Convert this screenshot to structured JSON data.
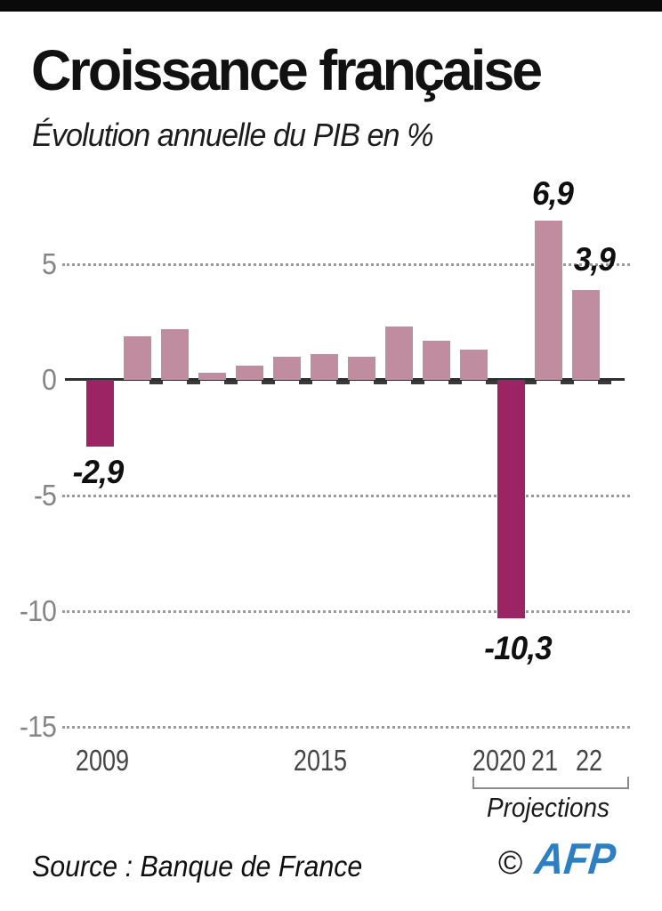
{
  "page": {
    "background": "#ffffff",
    "top_bar_color": "#0a0a0a"
  },
  "header": {
    "title": "Croissance française",
    "subtitle": "Évolution annuelle du PIB en %"
  },
  "chart_data": {
    "type": "bar",
    "title": "Croissance française",
    "subtitle": "Évolution annuelle du PIB en %",
    "unit": "%",
    "categories": [
      "2009",
      "2010",
      "2011",
      "2012",
      "2013",
      "2014",
      "2015",
      "2016",
      "2017",
      "2018",
      "2019",
      "2020",
      "2021",
      "2022"
    ],
    "values": [
      -2.9,
      1.9,
      2.2,
      0.3,
      0.6,
      1.0,
      1.1,
      1.0,
      2.3,
      1.7,
      1.3,
      -10.3,
      6.9,
      3.9
    ],
    "highlight_years": [
      "2009",
      "2020"
    ],
    "bar_value_labels": [
      {
        "year": "2009",
        "text": "-2,9"
      },
      {
        "year": "2020",
        "text": "-10,3"
      },
      {
        "year": "2021",
        "text": "6,9"
      },
      {
        "year": "2022",
        "text": "3,9"
      }
    ],
    "yticks": [
      {
        "value": 5,
        "label": "5"
      },
      {
        "value": 0,
        "label": "0"
      },
      {
        "value": -5,
        "label": "-5"
      },
      {
        "value": -10,
        "label": "-10"
      },
      {
        "value": -15,
        "label": "-15"
      }
    ],
    "ylim": [
      -15.5,
      7.5
    ],
    "x_axis_tick_labels": [
      "2009",
      "2015",
      "2020",
      "21",
      "22"
    ],
    "grid": "horizontal-dotted",
    "legend_position": "none",
    "projections_label": "Projections",
    "colors": {
      "bar_default": "#bf8ca0",
      "bar_highlight": "#9c2364"
    }
  },
  "footer": {
    "source": "Source : Banque de France",
    "copyright_symbol": "©",
    "agency": "AFP",
    "agency_color": "#2e7fc2"
  }
}
